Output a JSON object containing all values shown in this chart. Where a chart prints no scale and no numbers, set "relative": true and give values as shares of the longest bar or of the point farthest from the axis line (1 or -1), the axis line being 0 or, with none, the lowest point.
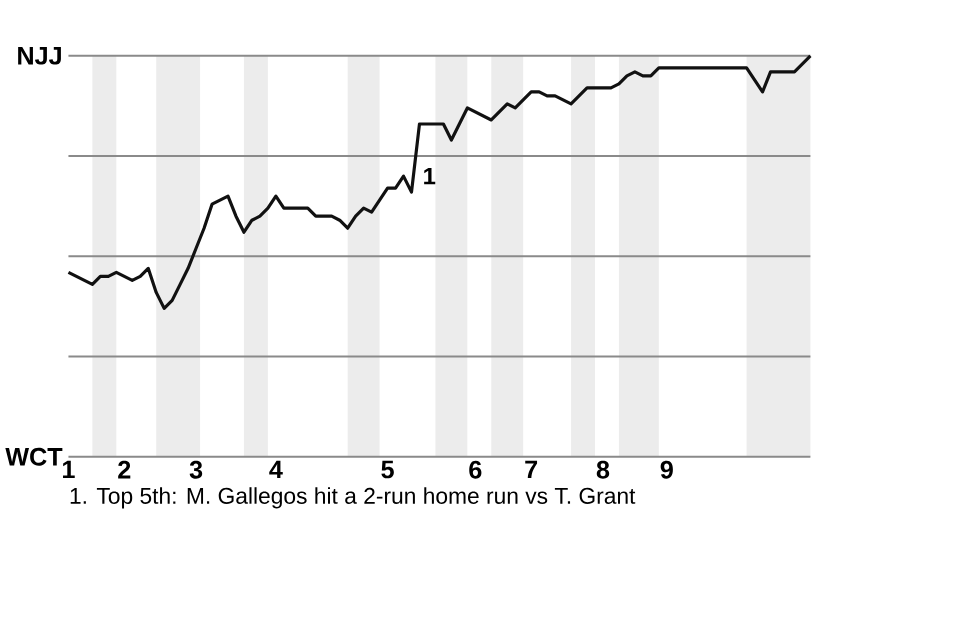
{
  "chart_data": {
    "type": "line",
    "relative": true,
    "categories": [
      "1",
      null,
      null,
      null,
      null,
      null,
      null,
      "2",
      null,
      null,
      null,
      null,
      null,
      null,
      null,
      null,
      "3",
      null,
      null,
      null,
      null,
      null,
      null,
      null,
      null,
      null,
      "4",
      null,
      null,
      null,
      null,
      null,
      null,
      null,
      null,
      null,
      null,
      null,
      null,
      null,
      "5",
      null,
      null,
      null,
      null,
      null,
      null,
      null,
      null,
      null,
      null,
      "6",
      null,
      null,
      null,
      null,
      null,
      null,
      "7",
      null,
      null,
      null,
      null,
      null,
      null,
      null,
      null,
      "8",
      null,
      null,
      null,
      null,
      null,
      null,
      null,
      "9",
      null,
      null,
      null,
      null,
      null,
      null,
      null,
      null,
      null,
      null,
      null,
      null,
      null,
      null,
      null,
      null,
      null,
      null
    ],
    "series": [
      {
        "color": "#111111",
        "values": [
          0.46,
          0.45,
          0.44,
          0.43,
          0.45,
          0.45,
          0.46,
          0.45,
          0.44,
          0.45,
          0.47,
          0.41,
          0.37,
          0.39,
          0.43,
          0.47,
          0.52,
          0.57,
          0.63,
          0.64,
          0.65,
          0.6,
          0.56,
          0.59,
          0.6,
          0.62,
          0.65,
          0.62,
          0.62,
          0.62,
          0.62,
          0.6,
          0.6,
          0.6,
          0.59,
          0.57,
          0.6,
          0.62,
          0.61,
          0.64,
          0.67,
          0.67,
          0.7,
          0.66,
          0.83,
          0.83,
          0.83,
          0.83,
          0.79,
          0.83,
          0.87,
          0.86,
          0.85,
          0.84,
          0.86,
          0.88,
          0.87,
          0.89,
          0.91,
          0.91,
          0.9,
          0.9,
          0.89,
          0.88,
          0.9,
          0.92,
          0.92,
          0.92,
          0.92,
          0.93,
          0.95,
          0.96,
          0.95,
          0.95,
          0.97,
          0.97,
          0.97,
          0.97,
          0.97,
          0.97,
          0.97,
          0.97,
          0.97,
          0.97,
          0.97,
          0.97,
          0.94,
          0.91,
          0.96,
          0.96,
          0.96,
          0.96,
          0.98,
          1.0
        ]
      }
    ],
    "grid": "y",
    "annotations": [
      "NJJ",
      "WCT",
      "1",
      "1. Top 5th: M. Gallegos hit a 2-run home run vs T. Grant"
    ]
  }
}
